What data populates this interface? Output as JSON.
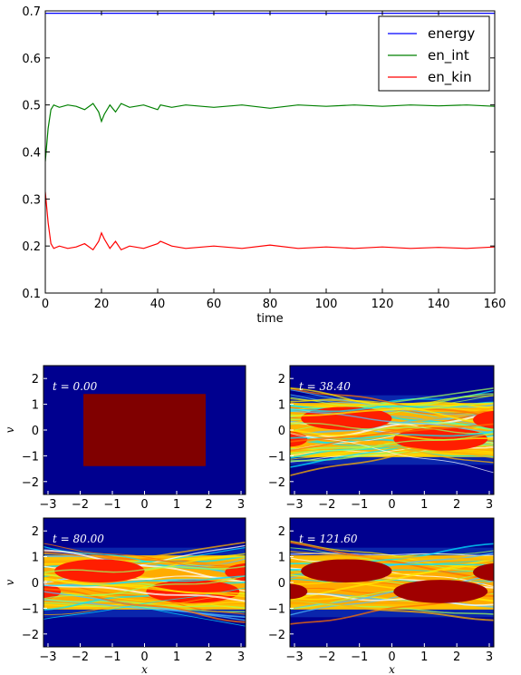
{
  "chart_data": [
    {
      "type": "line",
      "xlabel": "time",
      "ylabel": "",
      "xlim": [
        0,
        160
      ],
      "ylim": [
        0.1,
        0.7
      ],
      "xticks": [
        "0",
        "20",
        "40",
        "60",
        "80",
        "100",
        "120",
        "140",
        "160"
      ],
      "yticks": [
        "0.1",
        "0.2",
        "0.3",
        "0.4",
        "0.5",
        "0.6",
        "0.7"
      ],
      "legend_position": "top-right",
      "series": [
        {
          "name": "energy",
          "color": "#0000ff",
          "x": [
            0,
            160
          ],
          "y": [
            0.695,
            0.695
          ]
        },
        {
          "name": "en_int",
          "color": "#008000",
          "x": [
            0,
            1,
            2,
            3,
            5,
            8,
            11,
            14,
            17,
            19,
            20,
            21,
            23,
            25,
            27,
            30,
            35,
            40,
            41,
            45,
            50,
            60,
            70,
            80,
            90,
            100,
            110,
            120,
            130,
            140,
            150,
            160
          ],
          "y": [
            0.38,
            0.45,
            0.49,
            0.5,
            0.495,
            0.5,
            0.497,
            0.49,
            0.503,
            0.485,
            0.465,
            0.48,
            0.5,
            0.485,
            0.503,
            0.495,
            0.5,
            0.49,
            0.5,
            0.495,
            0.5,
            0.495,
            0.5,
            0.493,
            0.5,
            0.497,
            0.5,
            0.497,
            0.5,
            0.498,
            0.5,
            0.497
          ]
        },
        {
          "name": "en_kin",
          "color": "#ff0000",
          "x": [
            0,
            1,
            2,
            3,
            5,
            8,
            11,
            14,
            17,
            19,
            20,
            21,
            23,
            25,
            27,
            30,
            35,
            40,
            41,
            45,
            50,
            60,
            70,
            80,
            90,
            100,
            110,
            120,
            130,
            140,
            150,
            160
          ],
          "y": [
            0.315,
            0.25,
            0.205,
            0.195,
            0.2,
            0.195,
            0.198,
            0.205,
            0.192,
            0.21,
            0.228,
            0.215,
            0.195,
            0.21,
            0.192,
            0.2,
            0.195,
            0.205,
            0.21,
            0.2,
            0.195,
            0.2,
            0.195,
            0.202,
            0.195,
            0.198,
            0.195,
            0.198,
            0.195,
            0.197,
            0.195,
            0.198
          ]
        }
      ]
    },
    {
      "type": "heatmap",
      "label": "t = 0.00",
      "xlabel": "",
      "ylabel": "v",
      "xlim": [
        -3.14,
        3.14
      ],
      "ylim": [
        -2.5,
        2.5
      ],
      "xticks": [
        "−3",
        "−2",
        "−1",
        "0",
        "1",
        "2",
        "3"
      ],
      "yticks": [
        "−2",
        "−1",
        "0",
        "1",
        "2"
      ]
    },
    {
      "type": "heatmap",
      "label": "t = 38.40",
      "xlabel": "",
      "ylabel": "",
      "xlim": [
        -3.14,
        3.14
      ],
      "ylim": [
        -2.5,
        2.5
      ],
      "xticks": [
        "−3",
        "−2",
        "−1",
        "0",
        "1",
        "2",
        "3"
      ],
      "yticks": [
        "−2",
        "−1",
        "0",
        "1",
        "2"
      ]
    },
    {
      "type": "heatmap",
      "label": "t = 80.00",
      "xlabel": "x",
      "ylabel": "v",
      "xlim": [
        -3.14,
        3.14
      ],
      "ylim": [
        -2.5,
        2.5
      ],
      "xticks": [
        "−3",
        "−2",
        "−1",
        "0",
        "1",
        "2",
        "3"
      ],
      "yticks": [
        "−2",
        "−1",
        "0",
        "1",
        "2"
      ]
    },
    {
      "type": "heatmap",
      "label": "t = 121.60",
      "xlabel": "x",
      "ylabel": "",
      "xlim": [
        -3.14,
        3.14
      ],
      "ylim": [
        -2.5,
        2.5
      ],
      "xticks": [
        "−3",
        "−2",
        "−1",
        "0",
        "1",
        "2",
        "3"
      ],
      "yticks": [
        "−2",
        "−1",
        "0",
        "1",
        "2"
      ]
    }
  ]
}
